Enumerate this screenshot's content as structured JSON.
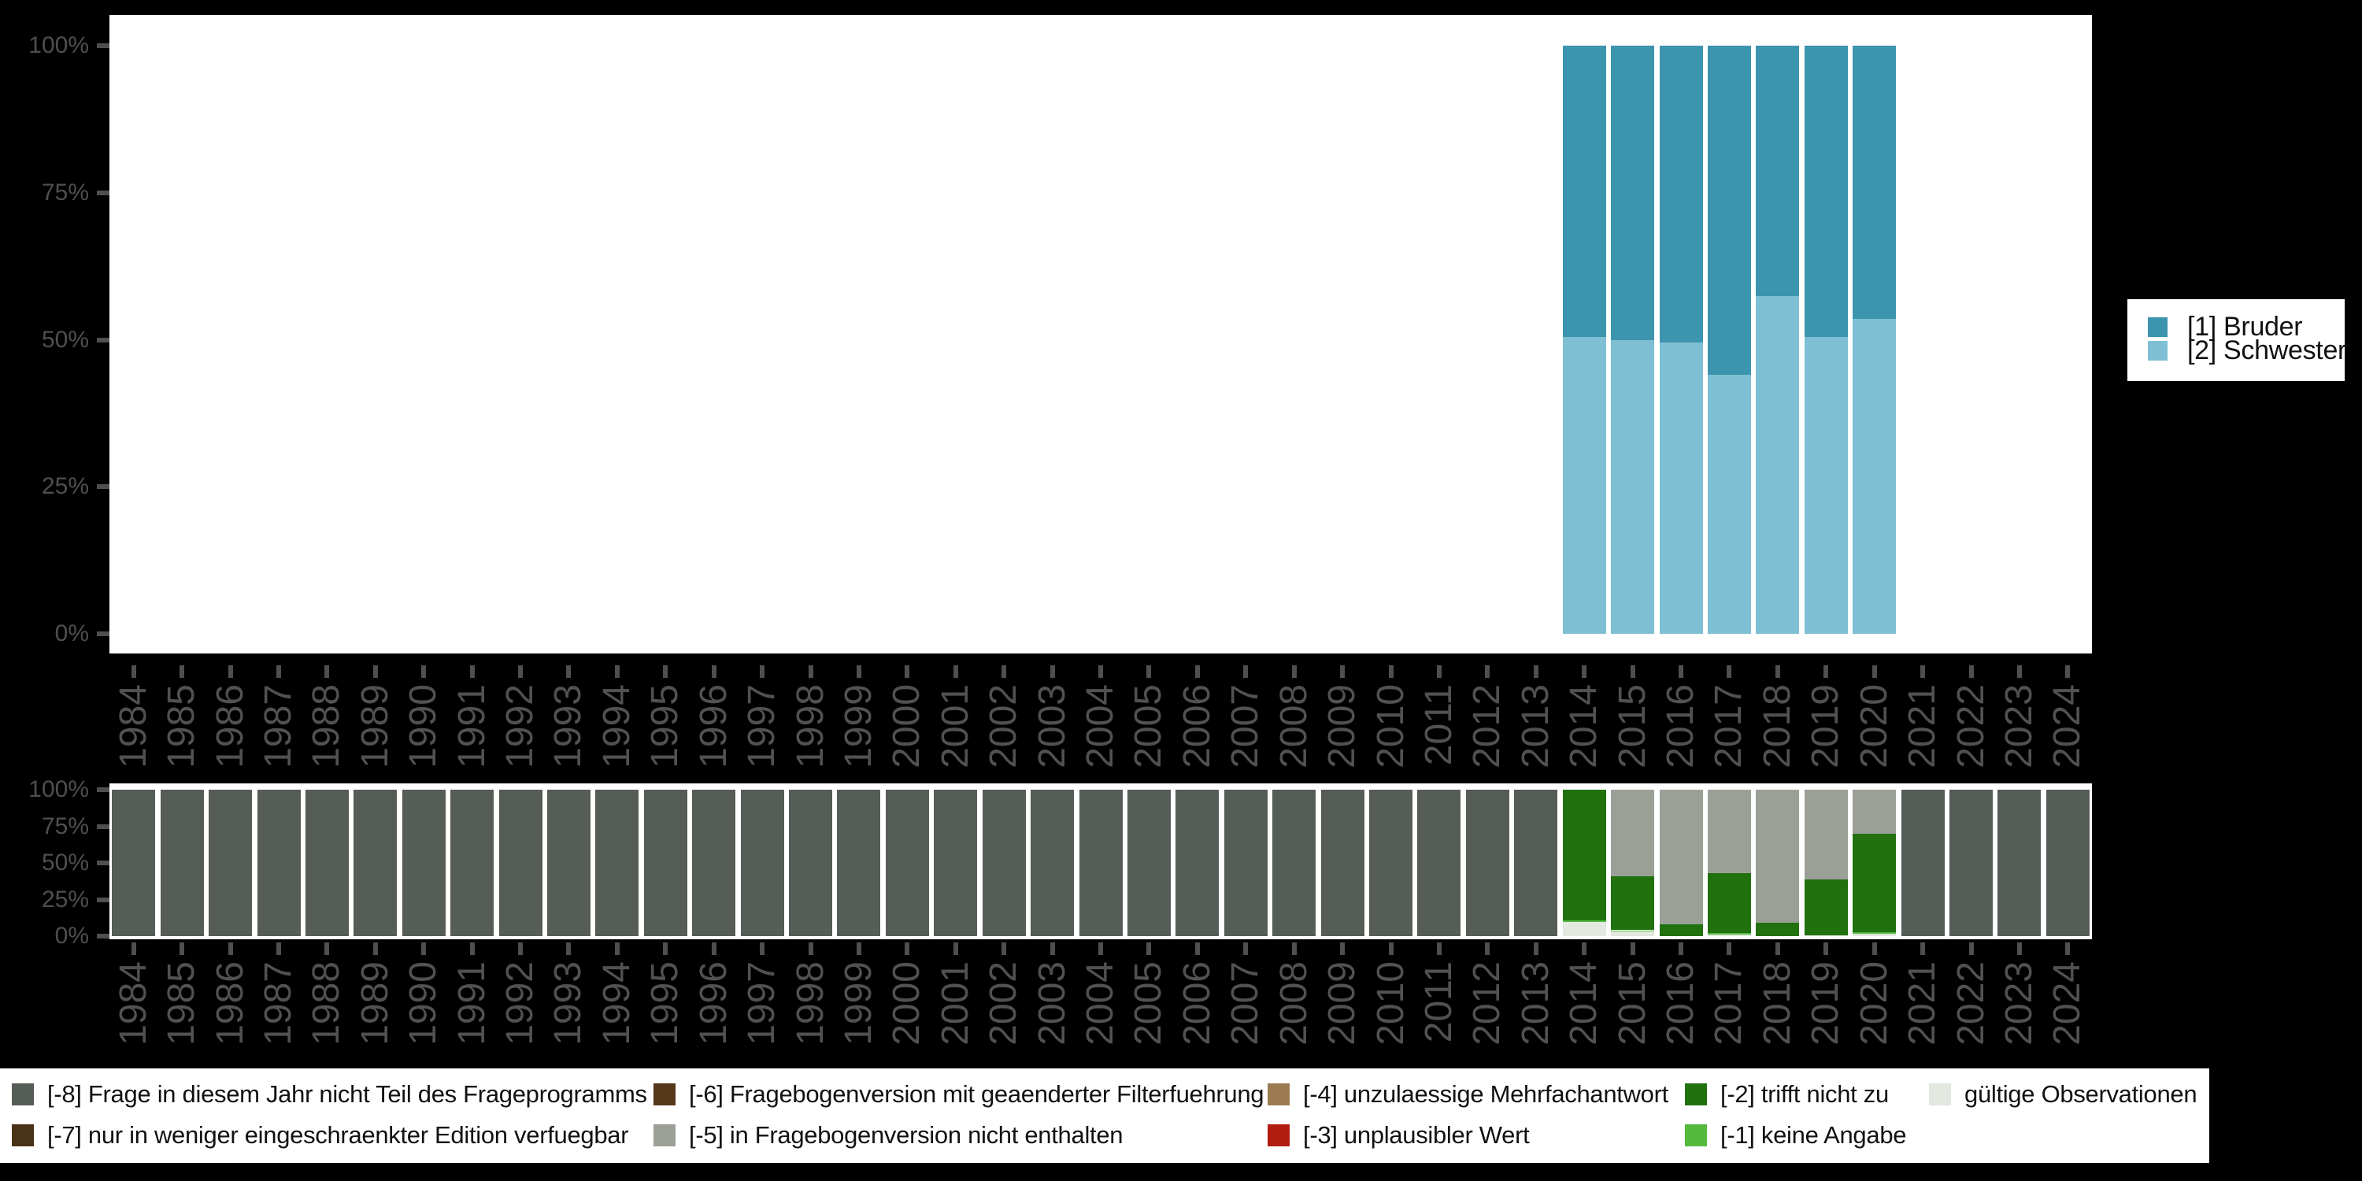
{
  "page": {
    "background": "#000000",
    "plot_background": "#ffffff",
    "axis_text_color": "#4f4f4f"
  },
  "chart_data": [
    {
      "type": "bar",
      "stacked": true,
      "unit": "percent",
      "title": "",
      "xlabel": "",
      "ylabel": "",
      "ylim": [
        0,
        100
      ],
      "grid": false,
      "legend_position": "right",
      "ytick_labels": [
        "0%",
        "25%",
        "50%",
        "75%",
        "100%"
      ],
      "x": [
        1984,
        1985,
        1986,
        1987,
        1988,
        1989,
        1990,
        1991,
        1992,
        1993,
        1994,
        1995,
        1996,
        1997,
        1998,
        1999,
        2000,
        2001,
        2002,
        2003,
        2004,
        2005,
        2006,
        2007,
        2008,
        2009,
        2010,
        2011,
        2012,
        2013,
        2014,
        2015,
        2016,
        2017,
        2018,
        2019,
        2020,
        2021,
        2022,
        2023,
        2024
      ],
      "series": [
        {
          "name": "[1] Bruder",
          "color": "#3c94ae",
          "values_by_year": {
            "2014": 49.5,
            "2015": 50,
            "2016": 50.5,
            "2017": 56,
            "2018": 42.5,
            "2019": 49.5,
            "2020": 46.5
          }
        },
        {
          "name": "[2] Schwester",
          "color": "#7fbfd3",
          "values_by_year": {
            "2014": 50.5,
            "2015": 50,
            "2016": 49.5,
            "2017": 44,
            "2018": 57.5,
            "2019": 50.5,
            "2020": 53.5
          }
        }
      ]
    },
    {
      "type": "bar",
      "stacked": true,
      "unit": "percent",
      "title": "",
      "xlabel": "",
      "ylabel": "",
      "ylim": [
        0,
        100
      ],
      "grid": false,
      "legend_position": "bottom",
      "ytick_labels": [
        "0%",
        "25%",
        "50%",
        "75%",
        "100%"
      ],
      "x": [
        1984,
        1985,
        1986,
        1987,
        1988,
        1989,
        1990,
        1991,
        1992,
        1993,
        1994,
        1995,
        1996,
        1997,
        1998,
        1999,
        2000,
        2001,
        2002,
        2003,
        2004,
        2005,
        2006,
        2007,
        2008,
        2009,
        2010,
        2011,
        2012,
        2013,
        2014,
        2015,
        2016,
        2017,
        2018,
        2019,
        2020,
        2021,
        2022,
        2023,
        2024
      ],
      "series": [
        {
          "name": "[-8] Frage in diesem Jahr nicht Teil des Frageprogramms",
          "color": "#565d56",
          "values_by_year": {
            "1984": 100,
            "1985": 100,
            "1986": 100,
            "1987": 100,
            "1988": 100,
            "1989": 100,
            "1990": 100,
            "1991": 100,
            "1992": 100,
            "1993": 100,
            "1994": 100,
            "1995": 100,
            "1996": 100,
            "1997": 100,
            "1998": 100,
            "1999": 100,
            "2000": 100,
            "2001": 100,
            "2002": 100,
            "2003": 100,
            "2004": 100,
            "2005": 100,
            "2006": 100,
            "2007": 100,
            "2008": 100,
            "2009": 100,
            "2010": 100,
            "2011": 100,
            "2012": 100,
            "2013": 100,
            "2021": 100,
            "2022": 100,
            "2023": 100,
            "2024": 100
          }
        },
        {
          "name": "[-5] in Fragebogenversion nicht enthalten",
          "color": "#9aa096",
          "values_by_year": {
            "2015": 59,
            "2016": 92,
            "2017": 57,
            "2018": 91,
            "2019": 61,
            "2020": 30
          }
        },
        {
          "name": "[-2] trifft nicht zu",
          "color": "#21710f",
          "values_by_year": {
            "2014": 89,
            "2015": 37,
            "2016": 8,
            "2017": 41,
            "2018": 9,
            "2019": 38.5,
            "2020": 67.5
          }
        },
        {
          "name": "[-1] keine Angabe",
          "color": "#53ba3e",
          "values_by_year": {
            "2014": 1.5,
            "2015": 1,
            "2017": 0.7,
            "2020": 1
          }
        },
        {
          "name": "gültige Observationen",
          "color": "#e3e8e0",
          "values_by_year": {
            "2014": 9.5,
            "2015": 3,
            "2017": 1.3,
            "2019": 0.5,
            "2020": 1.5
          }
        }
      ]
    }
  ],
  "legend_right": {
    "items": [
      {
        "label": "[1] Bruder",
        "color": "#3c94ae"
      },
      {
        "label": "[2] Schwester",
        "color": "#7fbfd3"
      }
    ]
  },
  "legend_bottom": {
    "columns": [
      [
        {
          "label": "[-8] Frage in diesem Jahr nicht Teil des Frageprogramms",
          "color": "#565d56"
        },
        {
          "label": "[-7] nur in weniger eingeschraenkter Edition verfuegbar",
          "color": "#4a3218"
        }
      ],
      [
        {
          "label": "[-6] Fragebogenversion mit geaenderter Filterfuehrung",
          "color": "#553719"
        },
        {
          "label": "[-5] in Fragebogenversion nicht enthalten",
          "color": "#9aa096"
        }
      ],
      [
        {
          "label": "[-4] unzulaessige Mehrfachantwort",
          "color": "#9c7b52"
        },
        {
          "label": "[-3] unplausibler Wert",
          "color": "#b21d12"
        }
      ],
      [
        {
          "label": "[-2] trifft nicht zu",
          "color": "#21710f"
        },
        {
          "label": "[-1] keine Angabe",
          "color": "#53ba3e"
        }
      ],
      [
        {
          "label": "gültige Observationen",
          "color": "#e3e8e0"
        }
      ]
    ]
  }
}
